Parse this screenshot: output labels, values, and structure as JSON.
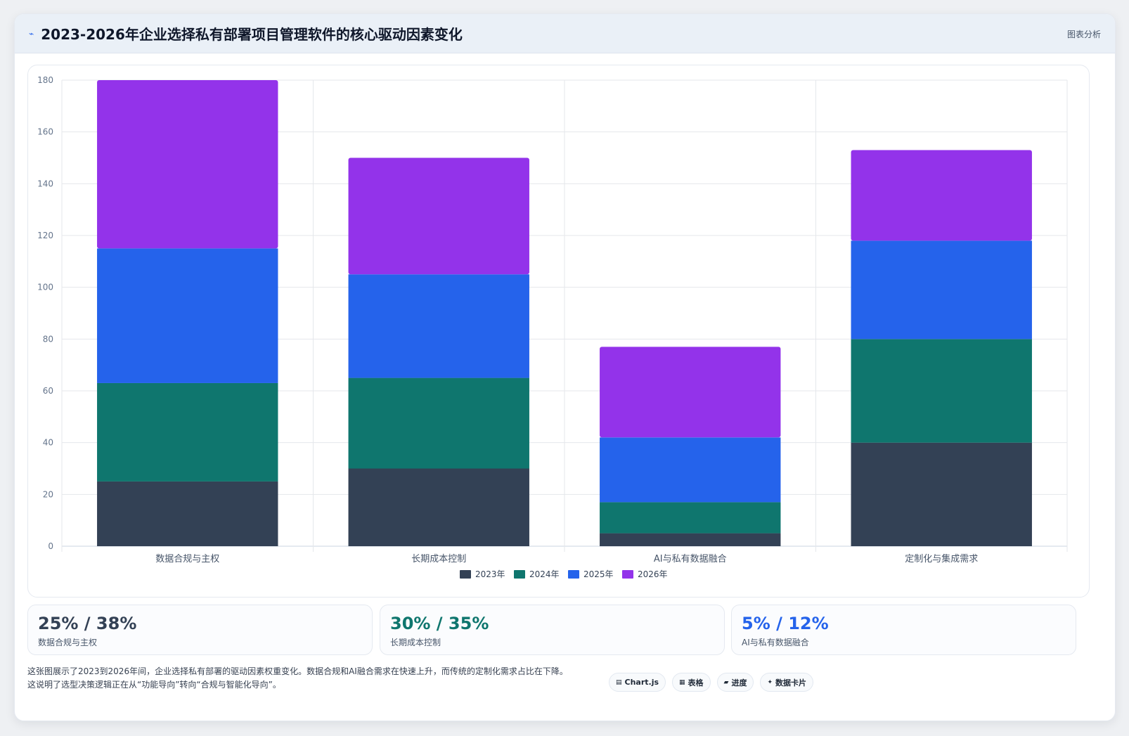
{
  "header": {
    "icon": "trend-line-icon",
    "title": "2023-2026年企业选择私有部署项目管理软件的核心驱动因素变化",
    "tag": "图表分析"
  },
  "chart_data": {
    "type": "bar",
    "stacked": true,
    "title": "",
    "xlabel": "",
    "ylabel": "",
    "ylim": [
      0,
      180
    ],
    "yticks": [
      0,
      20,
      40,
      60,
      80,
      100,
      120,
      140,
      160,
      180
    ],
    "grid": true,
    "legend_position": "bottom",
    "categories": [
      "数据合规与主权",
      "长期成本控制",
      "AI与私有数据融合",
      "定制化与集成需求"
    ],
    "series": [
      {
        "name": "2023年",
        "color": "#334155",
        "values": [
          25,
          30,
          5,
          40
        ]
      },
      {
        "name": "2024年",
        "color": "#0f766e",
        "values": [
          38,
          35,
          12,
          40
        ]
      },
      {
        "name": "2025年",
        "color": "#2563eb",
        "values": [
          52,
          40,
          25,
          38
        ]
      },
      {
        "name": "2026年",
        "color": "#9333ea",
        "values": [
          65,
          45,
          35,
          35
        ]
      }
    ]
  },
  "stats": [
    {
      "value": "25% / 38%",
      "label": "数据合规与主权",
      "color": "#334155"
    },
    {
      "value": "30% / 35%",
      "label": "长期成本控制",
      "color": "#0f766e"
    },
    {
      "value": "5% / 12%",
      "label": "AI与私有数据融合",
      "color": "#2563eb"
    }
  ],
  "description": {
    "line1": "这张图展示了2023到2026年间，企业选择私有部署的驱动因素权重变化。数据合规和AI融合需求在快速上升，而传统的定制化需求占比在下降。",
    "line2": "这说明了选型决策逻辑正在从“功能导向”转向“合规与智能化导向”。"
  },
  "chips": [
    {
      "icon": "chart-icon",
      "glyph": "▤",
      "label": "Chart.js"
    },
    {
      "icon": "table-icon",
      "glyph": "▦",
      "label": "表格"
    },
    {
      "icon": "progress-icon",
      "glyph": "▰",
      "label": "进度"
    },
    {
      "icon": "sparkle-icon",
      "glyph": "✦",
      "label": "数据卡片"
    }
  ]
}
